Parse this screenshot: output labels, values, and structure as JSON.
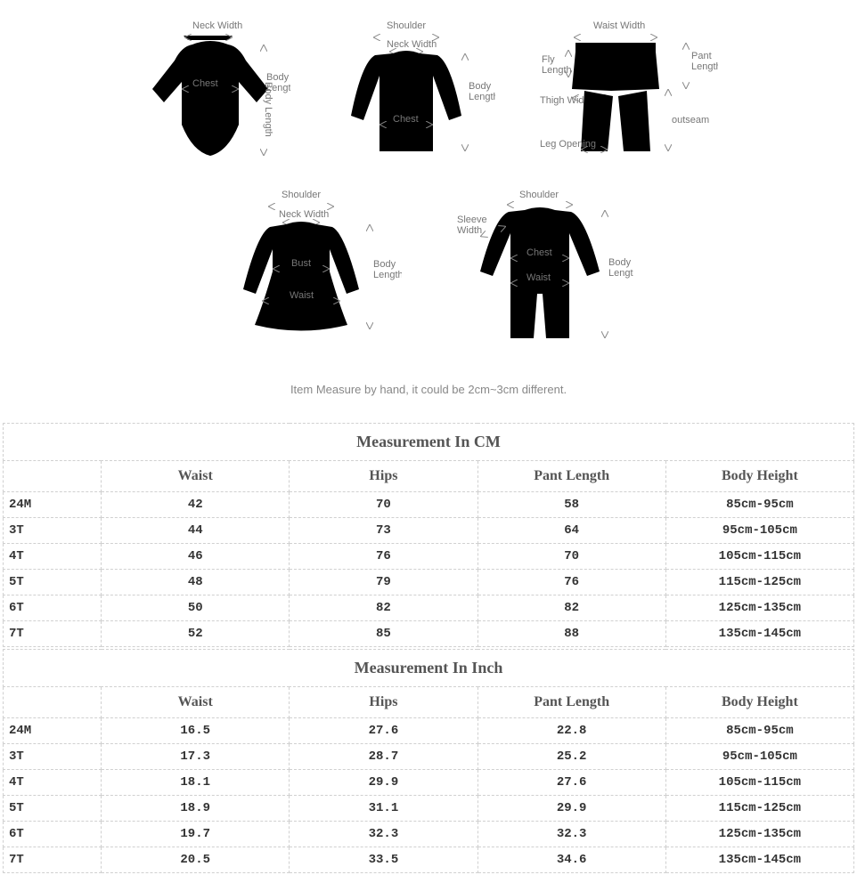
{
  "diagrams": {
    "neck_width": "Neck Width",
    "shoulder": "Shoulder",
    "chest": "Chest",
    "body_length": "Body Length",
    "waist_width": "Waist Width",
    "fly_length": "Fly Length",
    "thigh_width": "Thigh Width",
    "leg_opening": "Leg Opening",
    "pant_length": "Pant Length",
    "outseam": "outseam",
    "bust": "Bust",
    "waist": "Waist",
    "sleeve_width": "Sleeve Width"
  },
  "note": "Item Measure by hand, it could be 2cm~3cm different.",
  "table_cm": {
    "title": "Measurement In CM",
    "columns": [
      "Waist",
      "Hips",
      "Pant Length",
      "Body Height"
    ],
    "rows": [
      {
        "size": "24M",
        "cells": [
          "42",
          "70",
          "58",
          "85cm-95cm"
        ]
      },
      {
        "size": "3T",
        "cells": [
          "44",
          "73",
          "64",
          "95cm-105cm"
        ]
      },
      {
        "size": "4T",
        "cells": [
          "46",
          "76",
          "70",
          "105cm-115cm"
        ]
      },
      {
        "size": "5T",
        "cells": [
          "48",
          "79",
          "76",
          "115cm-125cm"
        ]
      },
      {
        "size": "6T",
        "cells": [
          "50",
          "82",
          "82",
          "125cm-135cm"
        ]
      },
      {
        "size": "7T",
        "cells": [
          "52",
          "85",
          "88",
          "135cm-145cm"
        ]
      }
    ]
  },
  "table_in": {
    "title": "Measurement In Inch",
    "columns": [
      "Waist",
      "Hips",
      "Pant Length",
      "Body Height"
    ],
    "rows": [
      {
        "size": "24M",
        "cells": [
          "16.5",
          "27.6",
          "22.8",
          "85cm-95cm"
        ]
      },
      {
        "size": "3T",
        "cells": [
          "17.3",
          "28.7",
          "25.2",
          "95cm-105cm"
        ]
      },
      {
        "size": "4T",
        "cells": [
          "18.1",
          "29.9",
          "27.6",
          "105cm-115cm"
        ]
      },
      {
        "size": "5T",
        "cells": [
          "18.9",
          "31.1",
          "29.9",
          "115cm-125cm"
        ]
      },
      {
        "size": "6T",
        "cells": [
          "19.7",
          "32.3",
          "32.3",
          "125cm-135cm"
        ]
      },
      {
        "size": "7T",
        "cells": [
          "20.5",
          "33.5",
          "34.6",
          "135cm-145cm"
        ]
      }
    ]
  },
  "style": {
    "stroke": "#888888",
    "label_color": "#777777",
    "table_border": "#d0d0d0",
    "header_color": "#555555",
    "cell_color": "#333333"
  }
}
